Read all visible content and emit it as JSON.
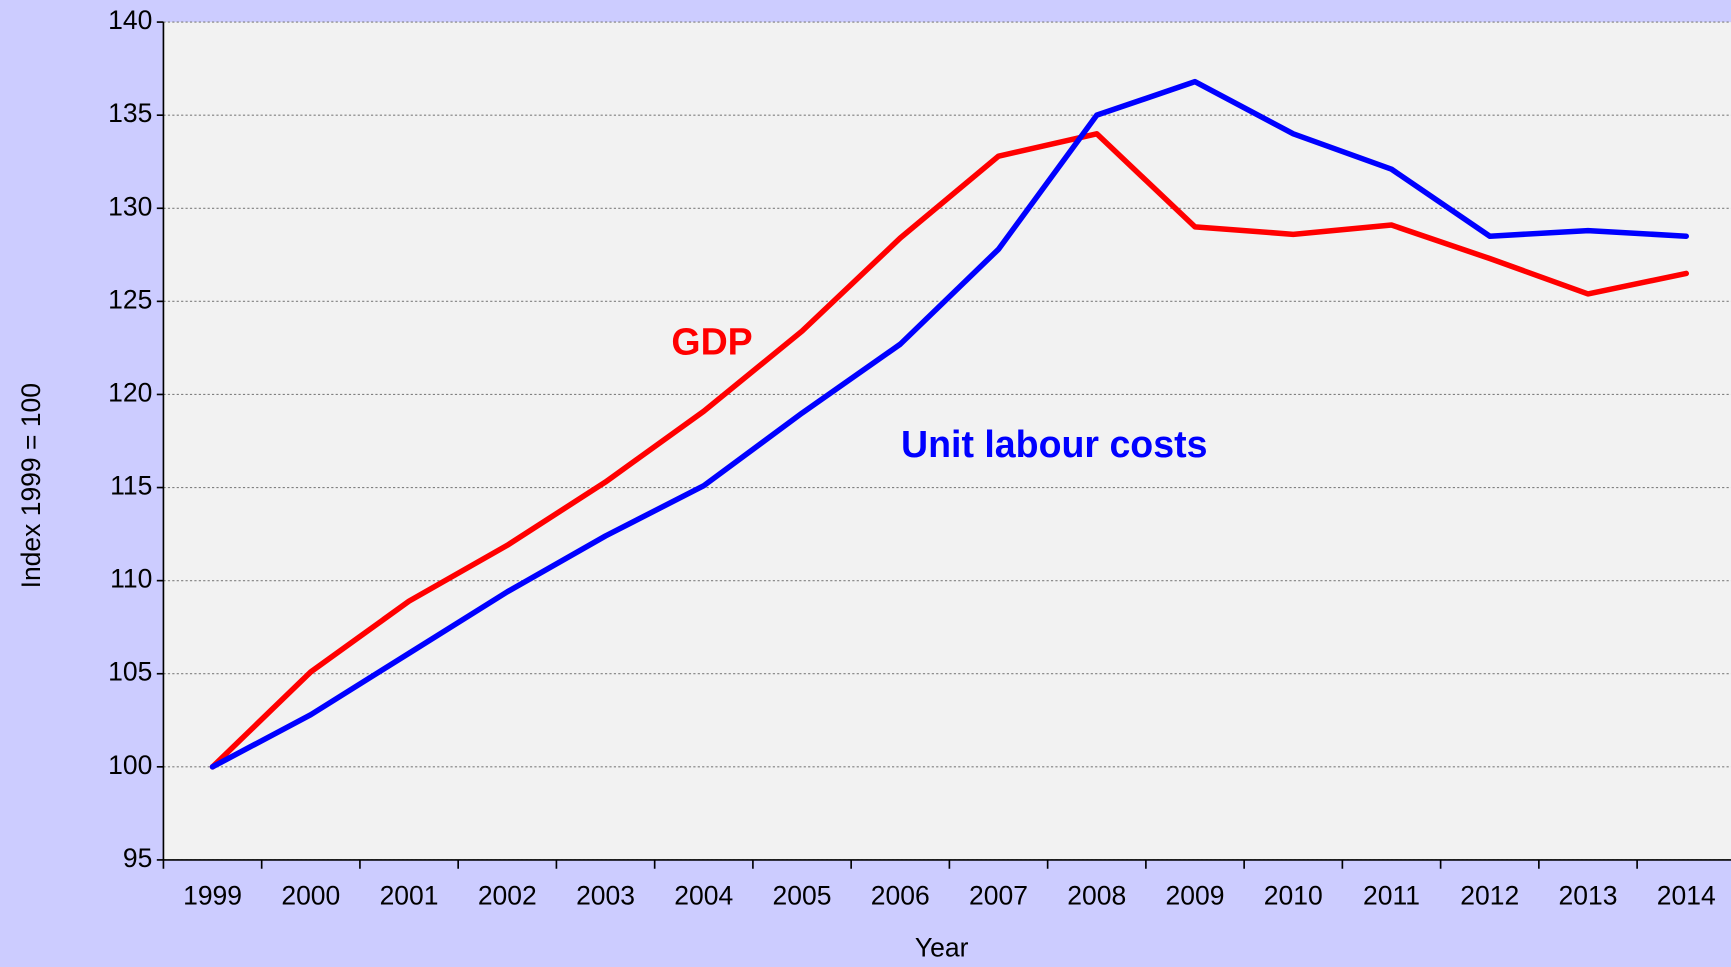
{
  "chart_data": {
    "type": "line",
    "x_label": "Year",
    "y_label": "Index 1999 = 100",
    "categories": [
      "1999",
      "2000",
      "2001",
      "2002",
      "2003",
      "2004",
      "2005",
      "2006",
      "2007",
      "2008",
      "2009",
      "2010",
      "2011",
      "2012",
      "2013",
      "2014"
    ],
    "series": [
      {
        "name": "GDP",
        "color": "#ff0000",
        "values": [
          100,
          105.1,
          108.9,
          111.9,
          115.3,
          119.1,
          123.4,
          128.4,
          132.8,
          134,
          129,
          128.6,
          129.1,
          127.3,
          125.4,
          126.5
        ]
      },
      {
        "name": "Unit labour costs",
        "color": "#0000ff",
        "values": [
          100,
          102.8,
          106.1,
          109.4,
          112.4,
          115.1,
          119,
          122.7,
          127.8,
          135,
          136.8,
          134,
          132.1,
          128.5,
          128.8,
          128.5
        ]
      }
    ],
    "ylim": [
      95,
      140
    ],
    "yticks": [
      95,
      100,
      105,
      110,
      115,
      120,
      125,
      130,
      135,
      140
    ],
    "grid": true
  }
}
